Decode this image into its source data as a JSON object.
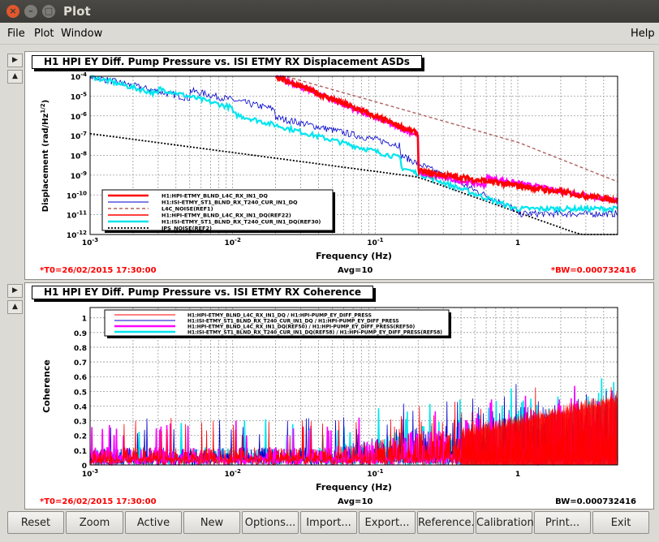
{
  "window": {
    "title": "Plot"
  },
  "menu": {
    "file": "File",
    "plot": "Plot",
    "window": "Window",
    "help": "Help"
  },
  "top": {
    "title": "H1 HPI EY Diff. Pump Pressure vs. ISI ETMY RX Displacement ASDs",
    "ylabel": "Displacement (rad/Hz",
    "ylabel_sup": "1/2",
    "xlabel": "Frequency (Hz)",
    "t0": "*T0=26/02/2015 17:30:00",
    "avg": "Avg=10",
    "bw": "*BW=0.000732416",
    "yticks": [
      "10-4",
      "10-5",
      "10-6",
      "10-7",
      "10-8",
      "10-9",
      "10-10",
      "10-11",
      "10-12"
    ],
    "xticks": [
      "10-3",
      "10-2",
      "10-1",
      "1"
    ],
    "legend": [
      "H1:HPI-ETMY_BLND_L4C_RX_IN1_DQ",
      "H1:ISI-ETMY_ST1_BLND_RX_T240_CUR_IN1_DQ",
      "L4C_NOISE(REF1)",
      "H1:HPI-ETMY_BLND_L4C_RX_IN1_DQ(REF22)",
      "H1:ISI-ETMY_ST1_BLND_RX_T240_CUR_IN1_DQ(REF30)",
      "IPS_NOISE(REF2)"
    ]
  },
  "bottom": {
    "title": "H1 HPI EY Diff. Pump Pressure vs. ISI ETMY RX Coherence",
    "ylabel": "Coherence",
    "xlabel": "Frequency (Hz)",
    "t0": "*T0=26/02/2015 17:30:00",
    "avg": "Avg=10",
    "bw": "BW=0.000732416",
    "yticks": [
      "1",
      "0.9",
      "0.8",
      "0.7",
      "0.6",
      "0.5",
      "0.4",
      "0.3",
      "0.2",
      "0.1",
      "0"
    ],
    "xticks": [
      "10-3",
      "10-2",
      "10-1",
      "1"
    ],
    "legend": [
      "H1:HPI-ETMY_BLND_L4C_RX_IN1_DQ / H1:HPI-PUMP_EY_DIFF_PRESS",
      "H1:ISI-ETMY_ST1_BLND_RX_T240_CUR_IN1_DQ / H1:HPI-PUMP_EY_DIFF_PRESS",
      "H1:HPI-ETMY_BLND_L4C_RX_IN1_DQ(REF50) / H1:HPI-PUMP_EY_DIFF_PRESS(REF50)",
      "H1:ISI-ETMY_ST1_BLND_RX_T240_CUR_IN1_DQ(REF58) / H1:HPI-PUMP_EY_DIFF_PRESS(REF58)"
    ]
  },
  "buttons": [
    "Reset",
    "Zoom",
    "Active",
    "New",
    "Options...",
    "Import...",
    "Export...",
    "Reference...",
    "Calibration...",
    "Print...",
    "Exit"
  ],
  "colors": {
    "red": "#ff0000",
    "blue": "#0000cc",
    "cyan": "#00e5ee",
    "magenta": "#ff00ff",
    "brown": "#b06060",
    "black": "#000000"
  }
}
